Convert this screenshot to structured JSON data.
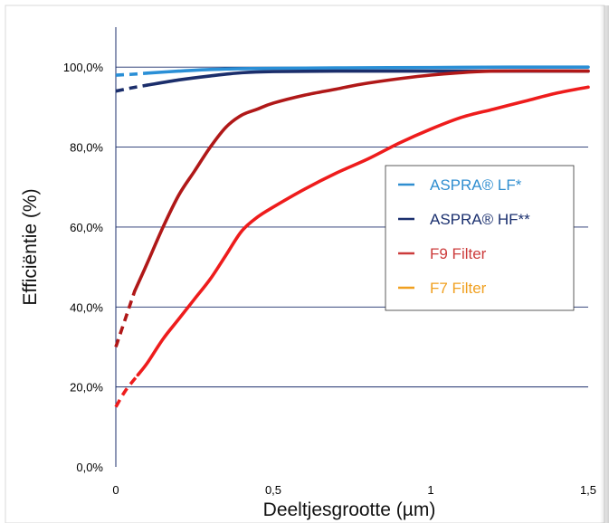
{
  "chart_data": {
    "type": "line",
    "xlabel": "Deeltjesgrootte (µm)",
    "ylabel": "Efficiëntie (%)",
    "xlim": [
      0,
      1.5
    ],
    "ylim": [
      0,
      110
    ],
    "x_ticks": [
      0,
      0.5,
      1,
      1.5
    ],
    "x_tick_labels": [
      "0",
      "0,5",
      "1",
      "1,5"
    ],
    "y_ticks": [
      0,
      20,
      40,
      60,
      80,
      100
    ],
    "y_tick_labels": [
      "0,0%",
      "20,0%",
      "40,0%",
      "60,0%",
      "80,0%",
      "100,0%"
    ],
    "grid": "horizontal",
    "legend_position": "right",
    "legend": [
      {
        "label": "ASPRA® LF*",
        "color": "#2f8ed0"
      },
      {
        "label": "ASPRA® HF**",
        "color": "#1a2f6e"
      },
      {
        "label": "F9 Filter",
        "color": "#cc3b3b"
      },
      {
        "label": "F7 Filter",
        "color": "#f0a020"
      }
    ],
    "series": [
      {
        "color": "#2a8fd6",
        "dashed_until": 0.1,
        "x": [
          0,
          0.05,
          0.1,
          0.2,
          0.3,
          0.4,
          0.5,
          0.7,
          1.0,
          1.25,
          1.5
        ],
        "y": [
          98.0,
          98.2,
          98.5,
          99.0,
          99.4,
          99.6,
          99.7,
          99.8,
          99.9,
          100.0,
          100.0
        ]
      },
      {
        "color": "#1b2e6b",
        "dashed_until": 0.1,
        "x": [
          0,
          0.05,
          0.1,
          0.2,
          0.3,
          0.4,
          0.5,
          0.7,
          1.0,
          1.25,
          1.5
        ],
        "y": [
          94.0,
          94.8,
          95.5,
          96.8,
          97.8,
          98.6,
          98.9,
          99.0,
          99.0,
          99.0,
          99.0
        ]
      },
      {
        "color": "#b01818",
        "dashed_until": 0.06,
        "x": [
          0,
          0.03,
          0.06,
          0.1,
          0.15,
          0.2,
          0.25,
          0.3,
          0.35,
          0.4,
          0.45,
          0.5,
          0.6,
          0.7,
          0.8,
          1.0,
          1.2,
          1.5
        ],
        "y": [
          30,
          37,
          44,
          51,
          60,
          68,
          74,
          80,
          85,
          88,
          89.5,
          91,
          93,
          94.5,
          96,
          98,
          99,
          99
        ]
      },
      {
        "color": "#ee1c1c",
        "dashed_until": 0.07,
        "x": [
          0,
          0.03,
          0.07,
          0.1,
          0.15,
          0.2,
          0.25,
          0.3,
          0.35,
          0.4,
          0.45,
          0.5,
          0.6,
          0.7,
          0.8,
          0.9,
          1.0,
          1.1,
          1.2,
          1.3,
          1.4,
          1.5
        ],
        "y": [
          15,
          19,
          23,
          26,
          32,
          37,
          42,
          47,
          53,
          59,
          62.5,
          65,
          69.5,
          73.5,
          77,
          81,
          84.5,
          87.5,
          89.5,
          91.5,
          93.5,
          95
        ]
      }
    ]
  }
}
